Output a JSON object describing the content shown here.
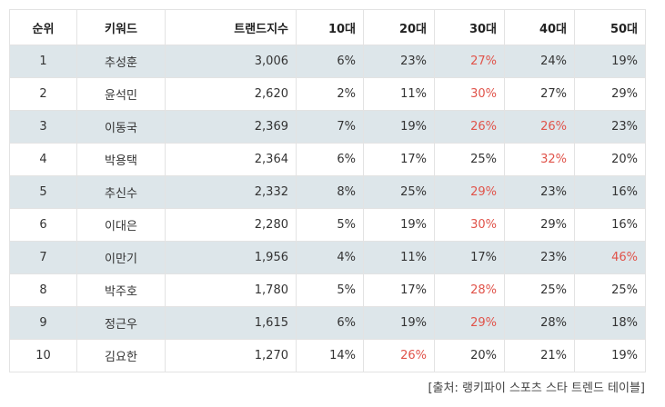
{
  "table": {
    "headers": [
      "순위",
      "키워드",
      "트랜드지수",
      "10대",
      "20대",
      "30대",
      "40대",
      "50대"
    ],
    "rows": [
      {
        "rank": "1",
        "keyword": "추성훈",
        "index": "3,006",
        "v": [
          "6%",
          "23%",
          "27%",
          "24%",
          "19%"
        ],
        "hi": [
          2
        ]
      },
      {
        "rank": "2",
        "keyword": "윤석민",
        "index": "2,620",
        "v": [
          "2%",
          "11%",
          "30%",
          "27%",
          "29%"
        ],
        "hi": [
          2
        ]
      },
      {
        "rank": "3",
        "keyword": "이동국",
        "index": "2,369",
        "v": [
          "7%",
          "19%",
          "26%",
          "26%",
          "23%"
        ],
        "hi": [
          2,
          3
        ]
      },
      {
        "rank": "4",
        "keyword": "박용택",
        "index": "2,364",
        "v": [
          "6%",
          "17%",
          "25%",
          "32%",
          "20%"
        ],
        "hi": [
          3
        ]
      },
      {
        "rank": "5",
        "keyword": "추신수",
        "index": "2,332",
        "v": [
          "8%",
          "25%",
          "29%",
          "23%",
          "16%"
        ],
        "hi": [
          2
        ]
      },
      {
        "rank": "6",
        "keyword": "이대은",
        "index": "2,280",
        "v": [
          "5%",
          "19%",
          "30%",
          "29%",
          "16%"
        ],
        "hi": [
          2
        ]
      },
      {
        "rank": "7",
        "keyword": "이만기",
        "index": "1,956",
        "v": [
          "4%",
          "11%",
          "17%",
          "23%",
          "46%"
        ],
        "hi": [
          4
        ]
      },
      {
        "rank": "8",
        "keyword": "박주호",
        "index": "1,780",
        "v": [
          "5%",
          "17%",
          "28%",
          "25%",
          "25%"
        ],
        "hi": [
          2
        ]
      },
      {
        "rank": "9",
        "keyword": "정근우",
        "index": "1,615",
        "v": [
          "6%",
          "19%",
          "29%",
          "28%",
          "18%"
        ],
        "hi": [
          2
        ]
      },
      {
        "rank": "10",
        "keyword": "김요한",
        "index": "1,270",
        "v": [
          "14%",
          "26%",
          "20%",
          "21%",
          "19%"
        ],
        "hi": [
          1
        ]
      }
    ]
  },
  "source": "[출처: 랭키파이 스포츠 스타 트렌드 테이블]",
  "colors": {
    "highlight": "#e0534a",
    "shade": "#dde6ea"
  }
}
